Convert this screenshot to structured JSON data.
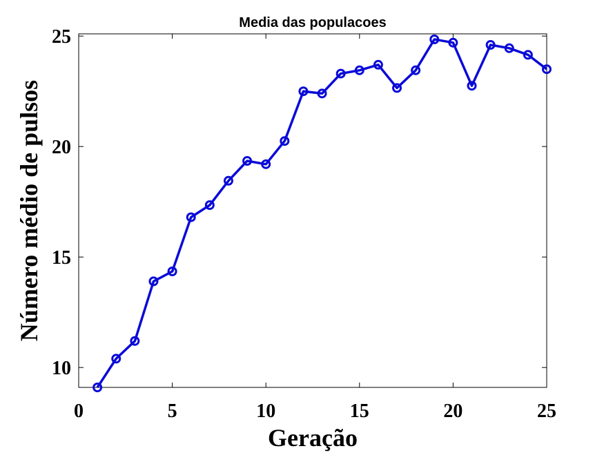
{
  "chart_data": {
    "type": "line",
    "title": "Media das populacoes",
    "xlabel": "Geração",
    "ylabel": "Número médio de pulsos",
    "xlim": [
      0,
      25
    ],
    "ylim": [
      9.1,
      25.1
    ],
    "xticks": [
      0,
      5,
      10,
      15,
      20,
      25
    ],
    "yticks": [
      10,
      15,
      20,
      25
    ],
    "xtick_labels": [
      "0",
      "5",
      "10",
      "15",
      "20",
      "25"
    ],
    "ytick_labels": [
      "10",
      "15",
      "20",
      "25"
    ],
    "grid": false,
    "colors": {
      "line": "#0a0ad8",
      "axis": "#000000",
      "background": "#ffffff"
    },
    "series": [
      {
        "marker": "circle",
        "x": [
          1,
          2,
          3,
          4,
          5,
          6,
          7,
          8,
          9,
          10,
          11,
          12,
          13,
          14,
          15,
          16,
          17,
          18,
          19,
          20,
          21,
          22,
          23,
          24,
          25
        ],
        "values": [
          9.1,
          10.4,
          11.2,
          13.9,
          14.35,
          16.8,
          17.35,
          18.45,
          19.35,
          19.2,
          20.25,
          22.5,
          22.4,
          23.3,
          23.45,
          23.7,
          22.65,
          23.45,
          24.85,
          24.7,
          22.75,
          24.6,
          24.45,
          24.15,
          23.5
        ]
      }
    ]
  }
}
